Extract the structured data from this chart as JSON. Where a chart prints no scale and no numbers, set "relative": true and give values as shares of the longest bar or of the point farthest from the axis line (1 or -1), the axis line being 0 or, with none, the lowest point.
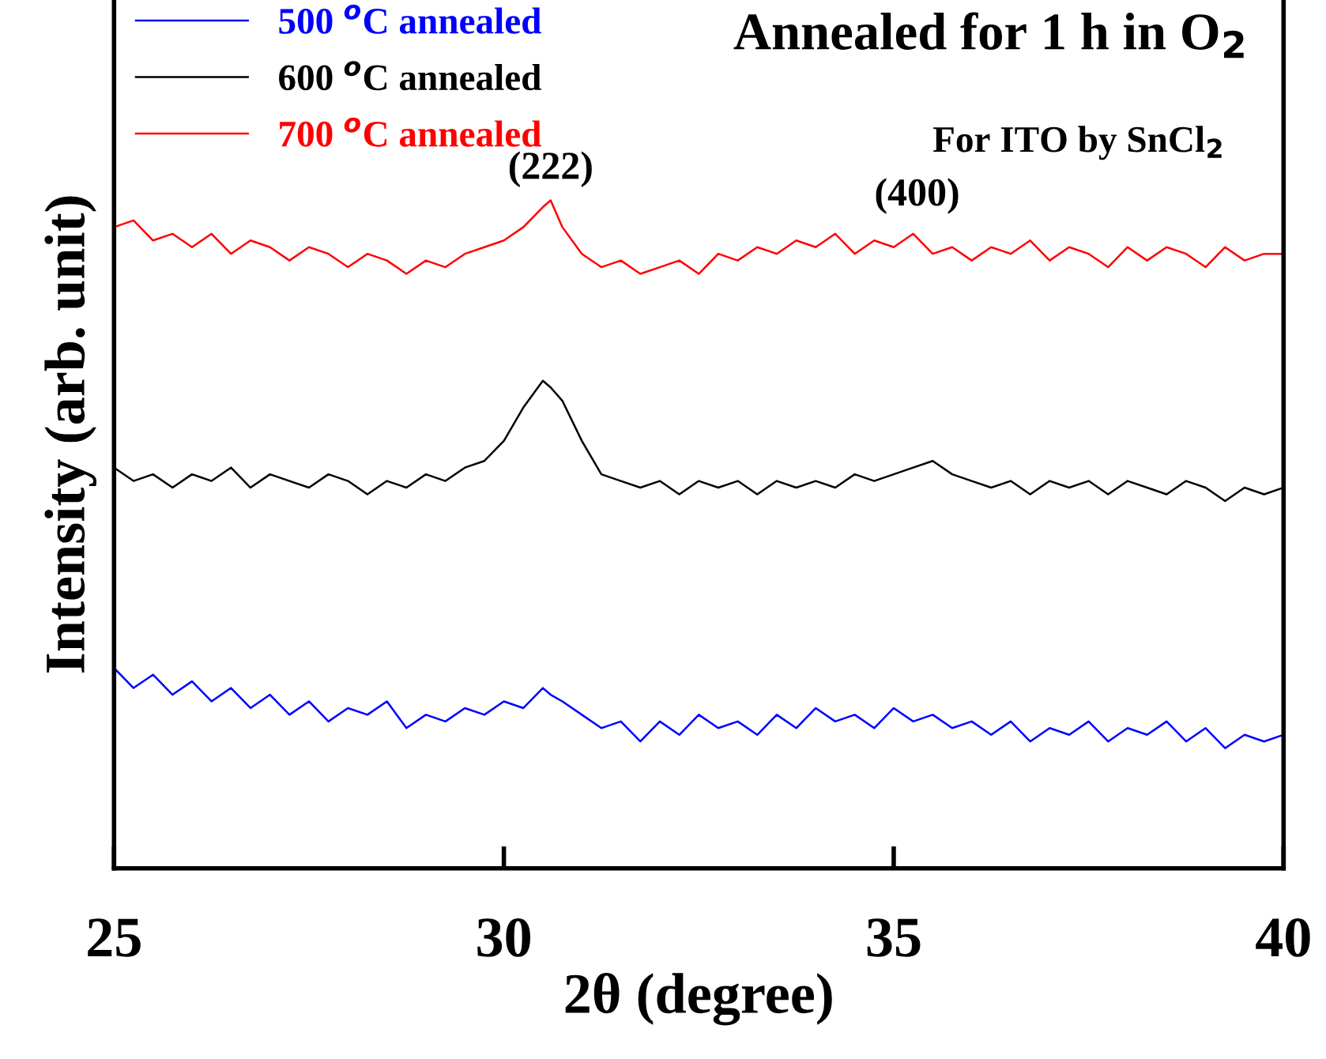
{
  "chart_data": {
    "type": "line",
    "title": "Annealed for 1 h in O$_{2}$",
    "xlabel": "2θ (degree)",
    "ylabel": "Intensity (arb. unit)",
    "relative": true,
    "xlim": [
      25,
      40
    ],
    "xticks": [
      25,
      30,
      35,
      40
    ],
    "grid": false,
    "legend": "top left",
    "tick_labels": "x",
    "x": [
      25,
      25.25,
      25.5,
      25.75,
      26,
      26.25,
      26.5,
      26.75,
      27,
      27.25,
      27.5,
      27.75,
      28,
      28.25,
      28.5,
      28.75,
      29,
      29.25,
      29.5,
      29.75,
      30,
      30.25,
      30.5,
      30.6,
      30.75,
      31,
      31.25,
      31.5,
      31.75,
      32,
      32.25,
      32.5,
      32.75,
      33,
      33.25,
      33.5,
      33.75,
      34,
      34.25,
      34.5,
      34.75,
      35,
      35.25,
      35.5,
      35.75,
      36,
      36.25,
      36.5,
      36.75,
      37,
      37.25,
      37.5,
      37.75,
      38,
      38.25,
      38.5,
      38.75,
      39,
      39.25,
      39.5,
      39.75,
      40
    ],
    "series": [
      {
        "name": "500 $^{o}$C annealed",
        "color": "#0000ff",
        "values": [
          0.3,
          0.27,
          0.29,
          0.26,
          0.28,
          0.25,
          0.27,
          0.24,
          0.26,
          0.23,
          0.25,
          0.22,
          0.24,
          0.23,
          0.25,
          0.21,
          0.23,
          0.22,
          0.24,
          0.23,
          0.25,
          0.24,
          0.27,
          0.26,
          0.25,
          0.23,
          0.21,
          0.22,
          0.19,
          0.22,
          0.2,
          0.23,
          0.21,
          0.22,
          0.2,
          0.23,
          0.21,
          0.24,
          0.22,
          0.23,
          0.21,
          0.24,
          0.22,
          0.23,
          0.21,
          0.22,
          0.2,
          0.22,
          0.19,
          0.21,
          0.2,
          0.22,
          0.19,
          0.21,
          0.2,
          0.22,
          0.19,
          0.21,
          0.18,
          0.2,
          0.19,
          0.2
        ]
      },
      {
        "name": "600 $^{o}$C annealed",
        "color": "#000000",
        "values": [
          0.6,
          0.58,
          0.59,
          0.57,
          0.59,
          0.58,
          0.6,
          0.57,
          0.59,
          0.58,
          0.57,
          0.59,
          0.58,
          0.56,
          0.58,
          0.57,
          0.59,
          0.58,
          0.6,
          0.61,
          0.64,
          0.69,
          0.73,
          0.72,
          0.7,
          0.64,
          0.59,
          0.58,
          0.57,
          0.58,
          0.56,
          0.58,
          0.57,
          0.58,
          0.56,
          0.58,
          0.57,
          0.58,
          0.57,
          0.59,
          0.58,
          0.59,
          0.6,
          0.61,
          0.59,
          0.58,
          0.57,
          0.58,
          0.56,
          0.58,
          0.57,
          0.58,
          0.56,
          0.58,
          0.57,
          0.56,
          0.58,
          0.57,
          0.55,
          0.57,
          0.56,
          0.57
        ]
      },
      {
        "name": "700 $^{o}$C annealed",
        "color": "#ff0000",
        "values": [
          0.96,
          0.97,
          0.94,
          0.95,
          0.93,
          0.95,
          0.92,
          0.94,
          0.93,
          0.91,
          0.93,
          0.92,
          0.9,
          0.92,
          0.91,
          0.89,
          0.91,
          0.9,
          0.92,
          0.93,
          0.94,
          0.96,
          0.99,
          1.0,
          0.96,
          0.92,
          0.9,
          0.91,
          0.89,
          0.9,
          0.91,
          0.89,
          0.92,
          0.91,
          0.93,
          0.92,
          0.94,
          0.93,
          0.95,
          0.92,
          0.94,
          0.93,
          0.95,
          0.92,
          0.93,
          0.91,
          0.93,
          0.92,
          0.94,
          0.91,
          0.93,
          0.92,
          0.9,
          0.93,
          0.91,
          0.93,
          0.92,
          0.9,
          0.93,
          0.91,
          0.92,
          0.92
        ]
      }
    ],
    "annotations": [
      {
        "text": "(222)",
        "x": 30.6,
        "y": 1.0
      },
      {
        "text": "(400)",
        "x": 35.3,
        "y": 0.96
      },
      "For ITO by SnCl$_{2}$"
    ]
  }
}
